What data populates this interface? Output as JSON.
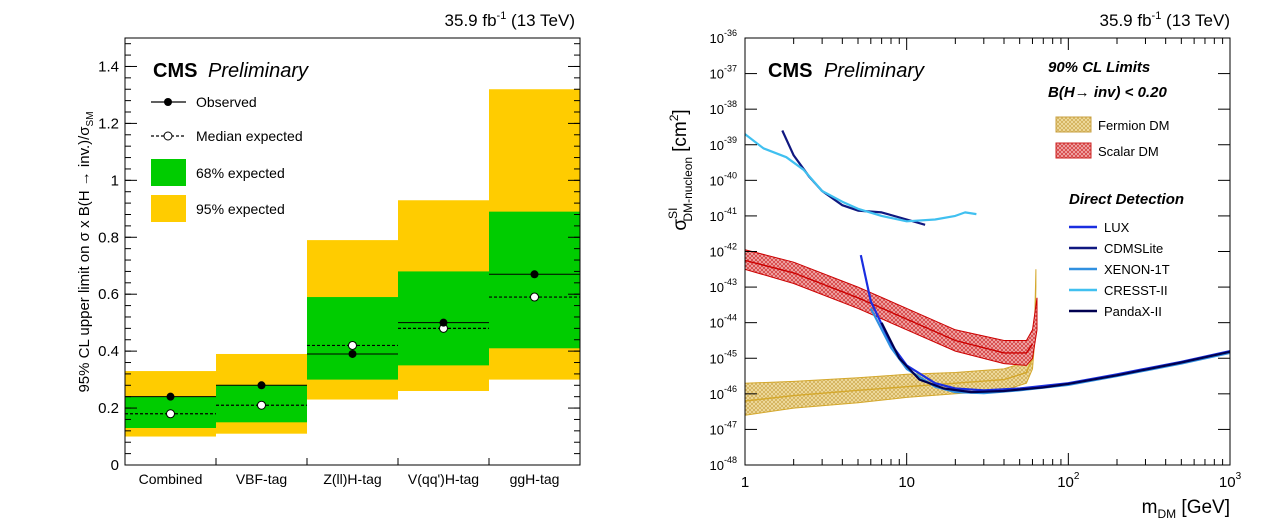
{
  "chart_data": [
    {
      "type": "bar",
      "lumi_label": "35.9 fb",
      "lumi_exp": "-1",
      "lumi_energy": "(13 TeV)",
      "experiment": "CMS",
      "status": "Preliminary",
      "ylabel": "95% CL upper limit on σ x B(H → inv.)/σ",
      "ylabel_sub": "SM",
      "ylim": [
        0,
        1.5
      ],
      "ytick_labels": [
        "0",
        "0.2",
        "0.4",
        "0.6",
        "0.8",
        "1",
        "1.2",
        "1.4"
      ],
      "categories": [
        "Combined",
        "VBF-tag",
        "Z(ll)H-tag",
        "V(qq')H-tag",
        "ggH-tag"
      ],
      "observed": [
        0.24,
        0.28,
        0.39,
        0.5,
        0.67
      ],
      "median_expected": [
        0.18,
        0.21,
        0.42,
        0.48,
        0.59
      ],
      "band68": [
        [
          0.13,
          0.24
        ],
        [
          0.15,
          0.28
        ],
        [
          0.3,
          0.59
        ],
        [
          0.35,
          0.68
        ],
        [
          0.41,
          0.89
        ]
      ],
      "band95": [
        [
          0.1,
          0.33
        ],
        [
          0.11,
          0.39
        ],
        [
          0.23,
          0.79
        ],
        [
          0.26,
          0.93
        ],
        [
          0.3,
          1.32
        ]
      ],
      "legend": {
        "observed": "Observed",
        "median": "Median expected",
        "band68": "68% expected",
        "band95": "95% expected"
      },
      "colors": {
        "band68": "#00cc00",
        "band95": "#ffcc00"
      }
    },
    {
      "type": "line",
      "lumi_label": "35.9 fb",
      "lumi_exp": "-1",
      "lumi_energy": "(13 TeV)",
      "experiment": "CMS",
      "status": "Preliminary",
      "ylabel_sigma": "σ",
      "ylabel_sup": "SI",
      "ylabel_sub": "DM-nucleon",
      "ylabel_unit": "[cm",
      "ylabel_unit_exp": "2",
      "ylabel_unit_close": "]",
      "xlabel": "m",
      "xlabel_sub": "DM",
      "xlabel_unit": "[GeV]",
      "xscale": "log",
      "yscale": "log",
      "xlim": [
        1,
        1000
      ],
      "ylim_exp": [
        -48,
        -36
      ],
      "xtick_labels": [
        {
          "x": 1,
          "base": "1",
          "exp": ""
        },
        {
          "x": 10,
          "base": "10",
          "exp": ""
        },
        {
          "x": 100,
          "base": "10",
          "exp": "2"
        },
        {
          "x": 1000,
          "base": "10",
          "exp": "3"
        }
      ],
      "ytick_base": "10",
      "ytick_exps": [
        "-48",
        "-47",
        "-46",
        "-45",
        "-44",
        "-43",
        "-42",
        "-41",
        "-40",
        "-39",
        "-38",
        "-37",
        "-36"
      ],
      "cl_title": "90% CL Limits",
      "br_title": "B(H→ inv) < 0.20",
      "dd_title": "Direct Detection",
      "bands": [
        {
          "name": "Fermion DM",
          "color": "#d4a82c",
          "fill": "#e8c870",
          "upper": [
            [
              1,
              -45.7
            ],
            [
              2,
              -45.65
            ],
            [
              5,
              -45.55
            ],
            [
              10,
              -45.45
            ],
            [
              20,
              -45.4
            ],
            [
              40,
              -45.3
            ],
            [
              55,
              -45.1
            ],
            [
              60,
              -44.6
            ],
            [
              62,
              -43.8
            ],
            [
              63,
              -42.5
            ]
          ],
          "lower": [
            [
              1,
              -46.6
            ],
            [
              2,
              -46.4
            ],
            [
              5,
              -46.25
            ],
            [
              10,
              -46.1
            ],
            [
              20,
              -46.0
            ],
            [
              40,
              -45.9
            ],
            [
              55,
              -45.7
            ],
            [
              60,
              -45.3
            ],
            [
              62,
              -44.5
            ],
            [
              63,
              -43.0
            ]
          ],
          "central": [
            [
              1,
              -46.2
            ],
            [
              2,
              -46.05
            ],
            [
              5,
              -45.9
            ],
            [
              10,
              -45.8
            ],
            [
              20,
              -45.7
            ],
            [
              40,
              -45.6
            ],
            [
              55,
              -45.4
            ],
            [
              60,
              -45.0
            ],
            [
              62,
              -44.2
            ]
          ]
        },
        {
          "name": "Scalar DM",
          "color": "#cc0000",
          "fill": "#e06060",
          "upper": [
            [
              1,
              -41.95
            ],
            [
              2,
              -42.3
            ],
            [
              5,
              -43.0
            ],
            [
              10,
              -43.6
            ],
            [
              20,
              -44.2
            ],
            [
              40,
              -44.5
            ],
            [
              55,
              -44.5
            ],
            [
              60,
              -44.2
            ],
            [
              64,
              -43.3
            ]
          ],
          "lower": [
            [
              1,
              -42.5
            ],
            [
              2,
              -42.9
            ],
            [
              5,
              -43.6
            ],
            [
              10,
              -44.2
            ],
            [
              20,
              -44.8
            ],
            [
              40,
              -45.15
            ],
            [
              55,
              -45.2
            ],
            [
              60,
              -45.0
            ],
            [
              64,
              -44.2
            ]
          ],
          "central": [
            [
              1,
              -42.25
            ],
            [
              2,
              -42.6
            ],
            [
              5,
              -43.3
            ],
            [
              10,
              -43.9
            ],
            [
              20,
              -44.5
            ],
            [
              40,
              -44.85
            ],
            [
              55,
              -44.85
            ],
            [
              60,
              -44.6
            ]
          ]
        }
      ],
      "series": [
        {
          "name": "LUX",
          "color": "#1a2ee0",
          "points": [
            [
              5.2,
              -42.1
            ],
            [
              6,
              -43.4
            ],
            [
              8,
              -44.6
            ],
            [
              10,
              -45.2
            ],
            [
              15,
              -45.7
            ],
            [
              20,
              -45.85
            ],
            [
              30,
              -45.9
            ],
            [
              50,
              -45.85
            ],
            [
              100,
              -45.7
            ],
            [
              200,
              -45.45
            ],
            [
              500,
              -45.1
            ],
            [
              1000,
              -44.8
            ]
          ]
        },
        {
          "name": "CDMSLite",
          "color": "#101880",
          "points": [
            [
              1.7,
              -38.6
            ],
            [
              2,
              -39.3
            ],
            [
              2.5,
              -39.9
            ],
            [
              3,
              -40.3
            ],
            [
              4,
              -40.7
            ],
            [
              5,
              -40.85
            ],
            [
              7,
              -40.9
            ],
            [
              10,
              -41.1
            ],
            [
              13,
              -41.25
            ]
          ]
        },
        {
          "name": "XENON-1T",
          "color": "#3090e0",
          "points": [
            [
              6,
              -43.6
            ],
            [
              8,
              -44.7
            ],
            [
              10,
              -45.3
            ],
            [
              15,
              -45.8
            ],
            [
              20,
              -45.95
            ],
            [
              30,
              -45.98
            ],
            [
              50,
              -45.9
            ],
            [
              100,
              -45.75
            ],
            [
              200,
              -45.5
            ],
            [
              500,
              -45.15
            ],
            [
              1000,
              -44.85
            ]
          ]
        },
        {
          "name": "CRESST-II",
          "color": "#40c0f0",
          "points": [
            [
              1,
              -38.7
            ],
            [
              1.3,
              -39.1
            ],
            [
              1.8,
              -39.35
            ],
            [
              2.3,
              -39.7
            ],
            [
              3,
              -40.3
            ],
            [
              4,
              -40.6
            ],
            [
              5,
              -40.8
            ],
            [
              7,
              -41.0
            ],
            [
              10,
              -41.15
            ],
            [
              15,
              -41.1
            ],
            [
              20,
              -41.0
            ],
            [
              23,
              -40.9
            ],
            [
              27,
              -40.95
            ]
          ]
        },
        {
          "name": "PandaX-II",
          "color": "#000050",
          "points": [
            [
              7,
              -44.0
            ],
            [
              9,
              -45.0
            ],
            [
              12,
              -45.6
            ],
            [
              17,
              -45.85
            ],
            [
              25,
              -45.95
            ],
            [
              40,
              -45.92
            ],
            [
              70,
              -45.82
            ],
            [
              100,
              -45.72
            ],
            [
              200,
              -45.48
            ],
            [
              500,
              -45.12
            ],
            [
              1000,
              -44.82
            ]
          ]
        }
      ]
    }
  ]
}
